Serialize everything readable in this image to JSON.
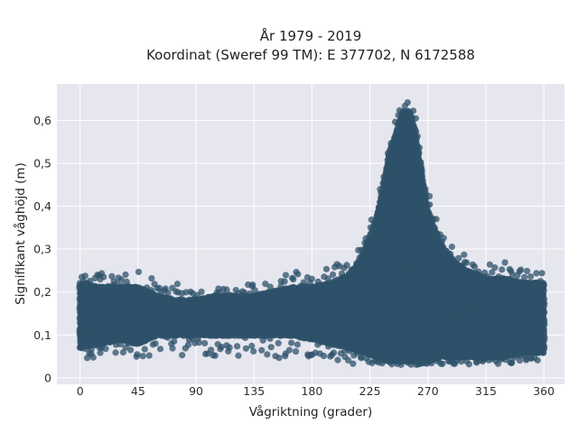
{
  "chart_data": {
    "type": "scatter",
    "title_line1": "År 1979 - 2019",
    "title_line2": "Koordinat (Sweref 99 TM): E 377702, N 6172588",
    "xlabel": "Vågriktning (grader)",
    "ylabel": "Signifikant våghöjd (m)",
    "xlim": [
      -18,
      376
    ],
    "ylim": [
      -0.015,
      0.685
    ],
    "x_ticks": [
      0,
      45,
      90,
      135,
      180,
      225,
      270,
      315,
      360
    ],
    "x_tick_labels": [
      "0",
      "45",
      "90",
      "135",
      "180",
      "225",
      "270",
      "315",
      "360"
    ],
    "y_ticks": [
      0,
      0.1,
      0.2,
      0.3,
      0.4,
      0.5,
      0.6
    ],
    "y_tick_labels": [
      "0",
      "0,1",
      "0,2",
      "0,3",
      "0,4",
      "0,5",
      "0,6"
    ],
    "grid": true,
    "legend": "none",
    "series": [
      {
        "marker_color": "#2e5169",
        "x": [
          0,
          15,
          30,
          45,
          60,
          75,
          90,
          105,
          120,
          135,
          150,
          165,
          180,
          195,
          210,
          220,
          230,
          240,
          250,
          255,
          260,
          270,
          280,
          290,
          300,
          315,
          330,
          345,
          360
        ],
        "y_max": [
          0.24,
          0.25,
          0.24,
          0.25,
          0.23,
          0.22,
          0.2,
          0.21,
          0.22,
          0.22,
          0.23,
          0.25,
          0.24,
          0.26,
          0.28,
          0.31,
          0.4,
          0.55,
          0.65,
          0.65,
          0.62,
          0.44,
          0.36,
          0.32,
          0.29,
          0.27,
          0.27,
          0.25,
          0.25
        ],
        "y_min": [
          0.04,
          0.05,
          0.06,
          0.04,
          0.05,
          0.05,
          0.06,
          0.05,
          0.05,
          0.05,
          0.04,
          0.05,
          0.05,
          0.04,
          0.03,
          0.03,
          0.03,
          0.03,
          0.03,
          0.02,
          0.03,
          0.03,
          0.03,
          0.03,
          0.03,
          0.03,
          0.03,
          0.04,
          0.04
        ],
        "y_dense_top": [
          0.22,
          0.21,
          0.21,
          0.21,
          0.19,
          0.18,
          0.18,
          0.19,
          0.19,
          0.19,
          0.2,
          0.21,
          0.21,
          0.22,
          0.24,
          0.29,
          0.37,
          0.52,
          0.62,
          0.62,
          0.58,
          0.39,
          0.31,
          0.27,
          0.25,
          0.23,
          0.23,
          0.22,
          0.22
        ],
        "y_dense_bottom": [
          0.07,
          0.08,
          0.09,
          0.08,
          0.1,
          0.1,
          0.1,
          0.1,
          0.1,
          0.1,
          0.1,
          0.1,
          0.09,
          0.08,
          0.07,
          0.06,
          0.05,
          0.04,
          0.04,
          0.04,
          0.04,
          0.04,
          0.05,
          0.05,
          0.05,
          0.05,
          0.05,
          0.06,
          0.06
        ]
      }
    ]
  }
}
